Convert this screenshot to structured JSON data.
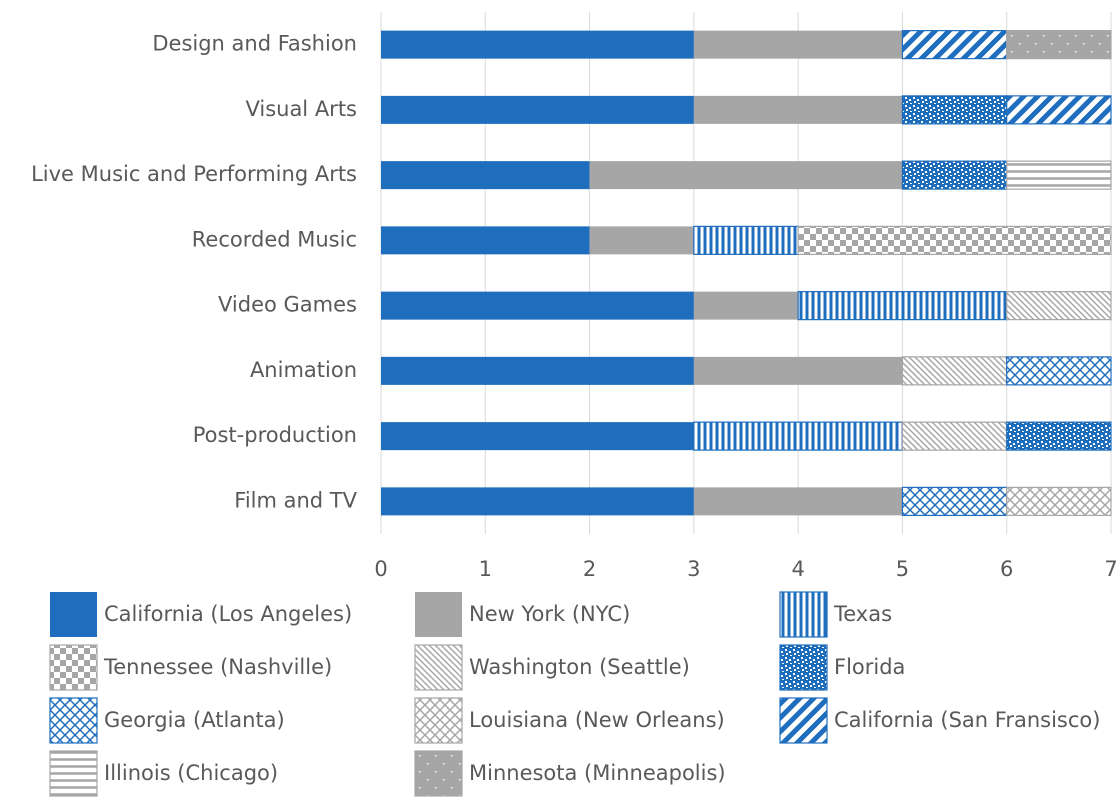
{
  "chart_data": {
    "type": "stacked-barh",
    "categories": [
      "Design and Fashion",
      "Visual Arts",
      "Live Music and Performing Arts",
      "Recorded Music",
      "Video Games",
      "Animation",
      "Post-production",
      "Film and TV"
    ],
    "series": [
      {
        "name": "California (Los Angeles)",
        "color": "#1f6ebe",
        "pattern": "solid",
        "values": [
          3,
          3,
          2,
          2,
          3,
          3,
          3,
          3
        ]
      },
      {
        "name": "New York (NYC)",
        "color": "#a6a6a6",
        "pattern": "solid",
        "values": [
          2,
          2,
          3,
          1,
          1,
          2,
          0,
          2
        ]
      },
      {
        "name": "Texas",
        "color": "#1f6ebe",
        "pattern": "vertical",
        "values": [
          0,
          0,
          0,
          1,
          2,
          0,
          2,
          0
        ]
      },
      {
        "name": "Tennessee (Nashville)",
        "color": "#a6a6a6",
        "pattern": "checker",
        "values": [
          0,
          0,
          0,
          3,
          0,
          0,
          0,
          0
        ]
      },
      {
        "name": "Washington (Seattle)",
        "color": "#a6a6a6",
        "pattern": "diagonal",
        "values": [
          0,
          0,
          0,
          0,
          1,
          1,
          1,
          0
        ]
      },
      {
        "name": "Florida",
        "color": "#1f6ebe",
        "pattern": "dots",
        "values": [
          0,
          1,
          1,
          0,
          0,
          0,
          1,
          0
        ]
      },
      {
        "name": "Georgia (Atlanta)",
        "color": "#1f6ebe",
        "pattern": "crosshatch",
        "values": [
          0,
          0,
          0,
          0,
          0,
          1,
          0,
          1
        ]
      },
      {
        "name": "Louisiana (New Orleans)",
        "color": "#a6a6a6",
        "pattern": "crosshatch",
        "values": [
          0,
          0,
          0,
          0,
          0,
          0,
          0,
          1
        ]
      },
      {
        "name": "California (San Fransisco)",
        "color": "#1f6ebe",
        "pattern": "wide-diagonal",
        "values": [
          1,
          1,
          0,
          0,
          0,
          0,
          0,
          0
        ]
      },
      {
        "name": "Illinois (Chicago)",
        "color": "#a6a6a6",
        "pattern": "horizontal",
        "values": [
          0,
          0,
          1,
          0,
          0,
          0,
          0,
          0
        ]
      },
      {
        "name": "Minnesota (Minneapolis)",
        "color": "#a6a6a6",
        "pattern": "sparse-dots",
        "values": [
          1,
          0,
          0,
          0,
          0,
          0,
          0,
          0
        ]
      }
    ],
    "xlim": [
      0,
      7
    ],
    "xticks": [
      0,
      1,
      2,
      3,
      4,
      5,
      6,
      7
    ],
    "grid": true
  }
}
